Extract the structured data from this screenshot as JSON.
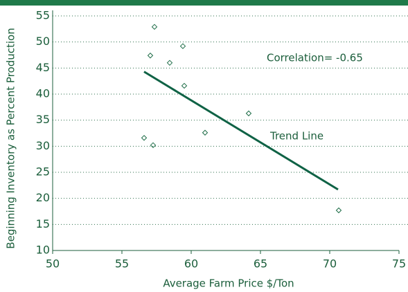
{
  "chart_data": {
    "type": "scatter",
    "x_label": "Average Farm Price  $/Ton",
    "y_label": "Beginning Inventory as Percent Production",
    "annotations": [
      "Correlation= -0.65",
      "Trend Line"
    ],
    "series": [
      {
        "color": "#1b6b45",
        "x": [
          57.35,
          57.05,
          58.45,
          59.4,
          59.5,
          56.6,
          57.25,
          61.0,
          64.15,
          70.65
        ],
        "values": [
          52.9,
          47.4,
          46.0,
          49.2,
          41.6,
          31.6,
          30.2,
          32.6,
          36.3,
          17.7
        ]
      }
    ],
    "trend_line": {
      "color": "#0f6245",
      "x": [
        56.6,
        70.6
      ],
      "values": [
        44.3,
        21.7
      ]
    },
    "xlim": [
      50,
      75
    ],
    "xticks": [
      50,
      55,
      60,
      65,
      70,
      75
    ],
    "ylim": [
      10,
      55
    ],
    "yticks": [
      10,
      15,
      20,
      25,
      30,
      35,
      40,
      45,
      50,
      55
    ],
    "grid": true,
    "header_color": "#1f7a4a"
  }
}
